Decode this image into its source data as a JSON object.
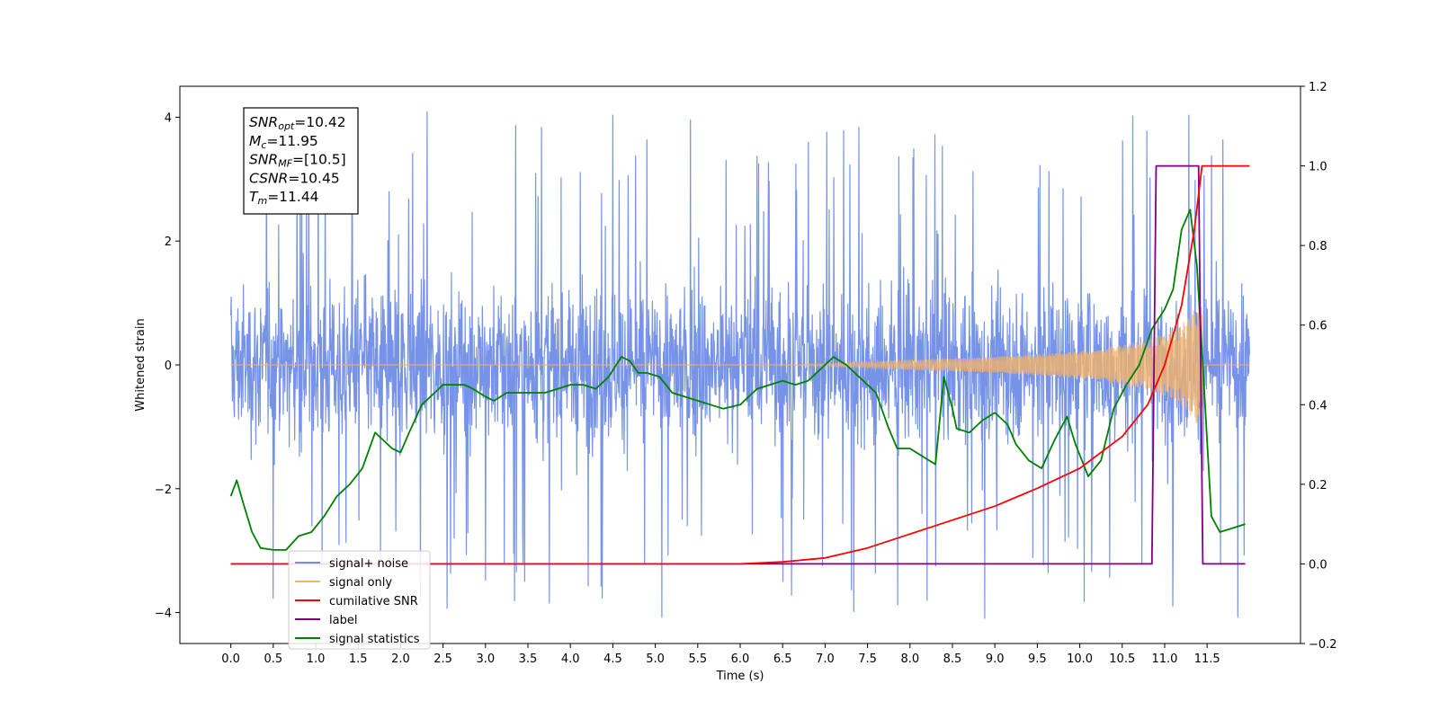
{
  "chart_data": {
    "type": "line",
    "xlabel": "Time (s)",
    "ylabel": "Whitened strain",
    "xlim": [
      -0.6,
      12.6
    ],
    "ylim": [
      -4.5,
      4.5
    ],
    "y2lim": [
      -0.2,
      1.2
    ],
    "x_ticks": [
      "0.0",
      "0.5",
      "1.0",
      "1.5",
      "2.0",
      "2.5",
      "3.0",
      "3.5",
      "4.0",
      "4.5",
      "5.0",
      "5.5",
      "6.0",
      "6.5",
      "7.0",
      "7.5",
      "8.0",
      "8.5",
      "9.0",
      "9.5",
      "10.0",
      "10.5",
      "11.0",
      "11.5"
    ],
    "y_ticks": [
      "4",
      "2",
      "0",
      "−2",
      "−4"
    ],
    "y2_ticks": [
      "1.2",
      "1.0",
      "0.8",
      "0.6",
      "0.4",
      "0.2",
      "0.0",
      "−0.2"
    ],
    "legend_position": "lower-left",
    "grid": false,
    "annotation": [
      {
        "base": "SNR",
        "sub": "opt",
        "value": "=10.42"
      },
      {
        "base": "M",
        "sub": "c",
        "value": "=11.95"
      },
      {
        "base": "SNR",
        "sub": "MF",
        "value": "=[10.5]"
      },
      {
        "base": "CSNR",
        "sub": "",
        "value": "=10.45"
      },
      {
        "base": "T",
        "sub": "m",
        "value": "=11.44"
      }
    ],
    "series": [
      {
        "name": "signal+ noise",
        "axis": "left",
        "color": "#6f8de6",
        "x_range": [
          0.0,
          12.0
        ],
        "typical_range": [
          -1.5,
          1.5
        ],
        "extreme_range": [
          -4.1,
          4.1
        ]
      },
      {
        "name": "signal only",
        "axis": "left",
        "color": "#f2b36b",
        "chirp_envelope": {
          "x": [
            0.0,
            6.5,
            7.0,
            7.5,
            8.0,
            8.5,
            9.0,
            9.5,
            10.0,
            10.5,
            10.8,
            11.0,
            11.2,
            11.3,
            11.4,
            11.44,
            11.45,
            12.0
          ],
          "amp": [
            0.0,
            0.0,
            0.02,
            0.05,
            0.08,
            0.1,
            0.13,
            0.17,
            0.22,
            0.32,
            0.4,
            0.5,
            0.65,
            0.8,
            1.0,
            1.0,
            0.0,
            0.0
          ]
        }
      },
      {
        "name": "cumilative SNR",
        "axis": "right",
        "color": "#ff0000",
        "x": [
          0.0,
          6.0,
          6.5,
          7.0,
          7.5,
          8.0,
          8.5,
          9.0,
          9.5,
          10.0,
          10.5,
          10.8,
          11.0,
          11.2,
          11.35,
          11.44,
          11.45,
          12.0
        ],
        "y": [
          0.0,
          0.0,
          0.005,
          0.015,
          0.04,
          0.075,
          0.11,
          0.145,
          0.19,
          0.24,
          0.32,
          0.4,
          0.5,
          0.65,
          0.84,
          1.0,
          1.0,
          1.0
        ]
      },
      {
        "name": "label",
        "axis": "right",
        "color": "#800080",
        "x": [
          0.0,
          10.85,
          10.9,
          11.4,
          11.45,
          11.95
        ],
        "y": [
          0.0,
          0.0,
          1.0,
          1.0,
          0.0,
          0.0
        ]
      },
      {
        "name": "signal statistics",
        "axis": "right",
        "color": "#008000",
        "x": [
          0.0,
          0.07,
          0.15,
          0.25,
          0.35,
          0.5,
          0.65,
          0.8,
          0.95,
          1.1,
          1.25,
          1.4,
          1.55,
          1.7,
          1.8,
          1.9,
          2.0,
          2.1,
          2.25,
          2.4,
          2.5,
          2.6,
          2.75,
          2.85,
          3.0,
          3.1,
          3.25,
          3.4,
          3.55,
          3.7,
          3.85,
          4.0,
          4.15,
          4.3,
          4.45,
          4.6,
          4.7,
          4.8,
          4.9,
          5.05,
          5.2,
          5.35,
          5.5,
          5.65,
          5.8,
          6.0,
          6.1,
          6.2,
          6.35,
          6.5,
          6.65,
          6.8,
          6.95,
          7.1,
          7.25,
          7.4,
          7.6,
          7.75,
          7.85,
          8.0,
          8.15,
          8.3,
          8.4,
          8.5,
          8.55,
          8.7,
          8.85,
          9.0,
          9.15,
          9.25,
          9.4,
          9.55,
          9.7,
          9.85,
          9.95,
          10.1,
          10.25,
          10.4,
          10.55,
          10.7,
          10.85,
          11.0,
          11.1,
          11.2,
          11.3,
          11.38,
          11.45,
          11.55,
          11.65,
          11.8,
          11.95
        ],
        "y": [
          0.17,
          0.21,
          0.15,
          0.08,
          0.04,
          0.035,
          0.035,
          0.07,
          0.08,
          0.12,
          0.17,
          0.2,
          0.24,
          0.33,
          0.31,
          0.29,
          0.28,
          0.33,
          0.4,
          0.43,
          0.45,
          0.45,
          0.45,
          0.44,
          0.42,
          0.41,
          0.43,
          0.43,
          0.43,
          0.43,
          0.44,
          0.45,
          0.45,
          0.44,
          0.47,
          0.52,
          0.51,
          0.48,
          0.48,
          0.47,
          0.43,
          0.42,
          0.41,
          0.4,
          0.39,
          0.4,
          0.42,
          0.44,
          0.45,
          0.46,
          0.45,
          0.46,
          0.49,
          0.52,
          0.5,
          0.47,
          0.43,
          0.34,
          0.29,
          0.29,
          0.27,
          0.25,
          0.47,
          0.39,
          0.34,
          0.33,
          0.36,
          0.38,
          0.35,
          0.3,
          0.26,
          0.24,
          0.31,
          0.37,
          0.3,
          0.22,
          0.26,
          0.39,
          0.45,
          0.5,
          0.59,
          0.64,
          0.69,
          0.84,
          0.89,
          0.75,
          0.5,
          0.12,
          0.08,
          0.09,
          0.1
        ]
      }
    ]
  }
}
